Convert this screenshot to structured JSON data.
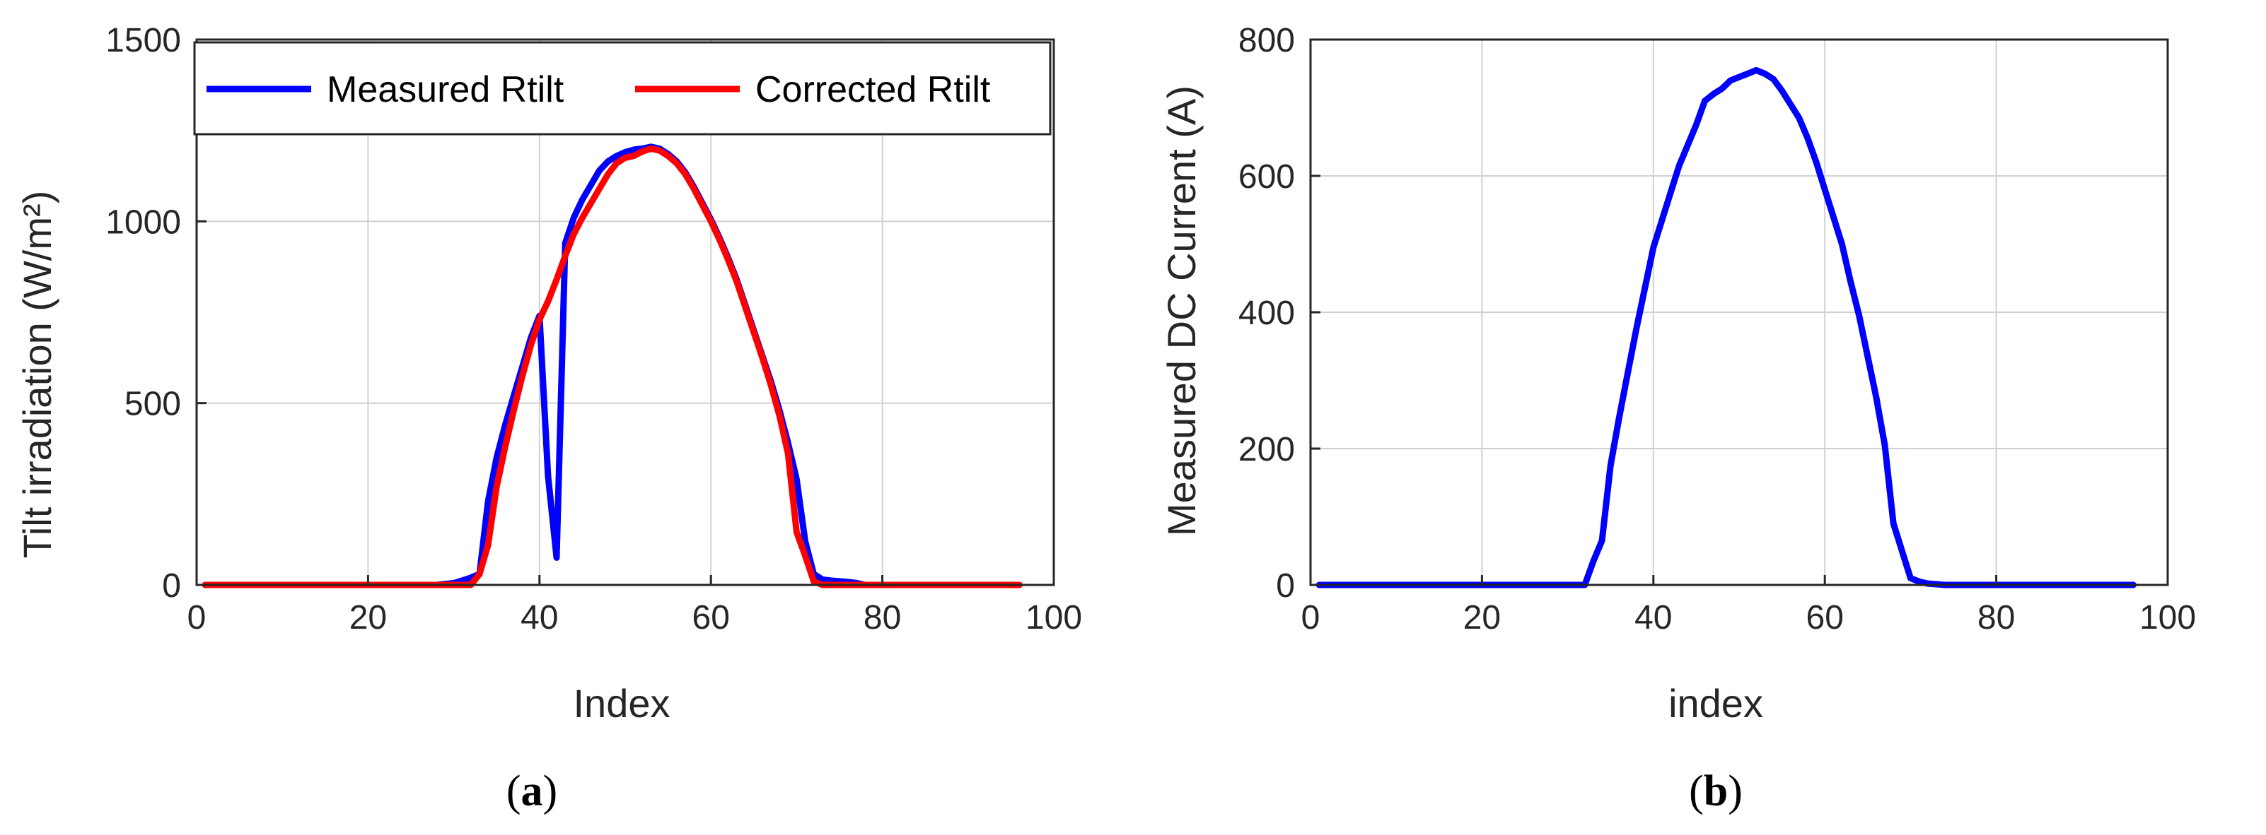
{
  "chart_data": [
    {
      "type": "line",
      "caption": {
        "open": "(",
        "letter": "a",
        "close": ")"
      },
      "xlabel": "Index",
      "ylabel": "Tilt irradiation (W/m²)",
      "xlim": [
        0,
        100
      ],
      "ylim": [
        0,
        1500
      ],
      "xticks": [
        "0",
        "20",
        "40",
        "60",
        "80",
        "100"
      ],
      "yticks": [
        "0",
        "500",
        "1000",
        "1500"
      ],
      "grid": true,
      "legend": {
        "placement": "top",
        "entries": [
          "Measured Rtilt",
          "Corrected Rtilt"
        ]
      },
      "series": [
        {
          "name": "Measured Rtilt",
          "color": "#0000ff",
          "x": [
            1,
            28,
            30,
            31,
            32,
            33,
            34,
            35,
            36,
            37,
            38,
            39,
            40,
            41,
            42,
            43,
            44,
            45,
            46,
            47,
            48,
            49,
            50,
            51,
            52,
            53,
            54,
            55,
            56,
            57,
            58,
            59,
            60,
            61,
            62,
            63,
            64,
            65,
            66,
            67,
            68,
            69,
            70,
            71,
            72,
            73,
            74,
            75,
            76,
            77,
            78,
            79,
            96
          ],
          "y": [
            0,
            0,
            5,
            12,
            20,
            30,
            230,
            350,
            440,
            520,
            600,
            680,
            740,
            300,
            75,
            940,
            1010,
            1060,
            1100,
            1140,
            1165,
            1180,
            1190,
            1197,
            1200,
            1205,
            1200,
            1185,
            1165,
            1135,
            1095,
            1050,
            1005,
            955,
            900,
            840,
            770,
            700,
            630,
            560,
            480,
            390,
            290,
            120,
            30,
            15,
            12,
            10,
            8,
            5,
            0,
            0,
            0
          ]
        },
        {
          "name": "Corrected Rtilt",
          "color": "#ff0000",
          "x": [
            1,
            32,
            33,
            34,
            35,
            36,
            37,
            38,
            39,
            40,
            41,
            42,
            43,
            44,
            45,
            46,
            47,
            48,
            49,
            50,
            51,
            52,
            53,
            54,
            55,
            56,
            57,
            58,
            59,
            60,
            61,
            62,
            63,
            64,
            65,
            66,
            67,
            68,
            69,
            70,
            71,
            72,
            73,
            74,
            96
          ],
          "y": [
            0,
            0,
            30,
            110,
            270,
            380,
            480,
            575,
            660,
            730,
            780,
            840,
            905,
            965,
            1010,
            1050,
            1090,
            1130,
            1160,
            1175,
            1180,
            1192,
            1200,
            1195,
            1180,
            1160,
            1130,
            1090,
            1045,
            1000,
            950,
            895,
            835,
            765,
            695,
            625,
            550,
            465,
            360,
            145,
            80,
            10,
            0,
            0,
            0
          ]
        }
      ]
    },
    {
      "type": "line",
      "caption": {
        "open": "(",
        "letter": "b",
        "close": ")"
      },
      "xlabel": "index",
      "ylabel": "Measured DC Current (A)",
      "xlim": [
        0,
        100
      ],
      "ylim": [
        0,
        800
      ],
      "xticks": [
        "0",
        "20",
        "40",
        "60",
        "80",
        "100"
      ],
      "yticks": [
        "0",
        "200",
        "400",
        "600",
        "800"
      ],
      "grid": true,
      "series": [
        {
          "color": "#0000ff",
          "x": [
            1,
            32,
            33,
            34,
            35,
            36,
            37,
            38,
            39,
            40,
            41,
            42,
            43,
            44,
            45,
            46,
            47,
            48,
            49,
            50,
            51,
            52,
            53,
            54,
            55,
            56,
            57,
            58,
            59,
            60,
            61,
            62,
            63,
            64,
            65,
            66,
            67,
            68,
            69,
            70,
            71,
            72,
            73,
            74,
            96
          ],
          "y": [
            0,
            0,
            35,
            65,
            175,
            245,
            310,
            375,
            435,
            495,
            535,
            575,
            615,
            645,
            675,
            710,
            720,
            728,
            740,
            745,
            750,
            755,
            750,
            742,
            725,
            705,
            685,
            655,
            620,
            580,
            540,
            500,
            445,
            395,
            335,
            275,
            205,
            90,
            50,
            10,
            5,
            2,
            1,
            0,
            0
          ]
        }
      ]
    }
  ]
}
